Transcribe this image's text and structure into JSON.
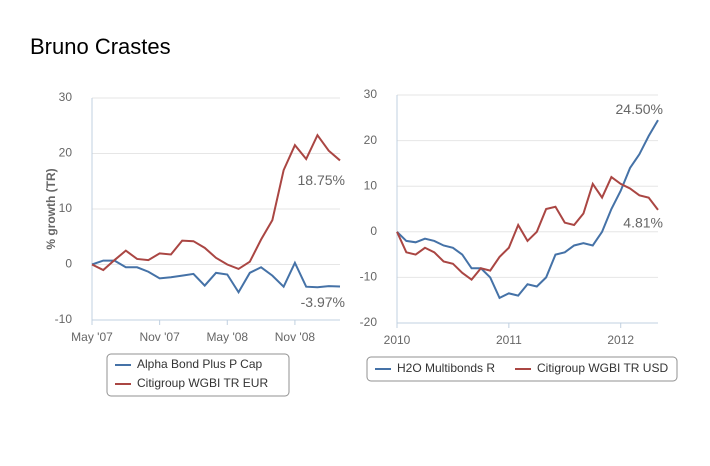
{
  "title": "Bruno Crastes",
  "chart_data": [
    {
      "type": "line",
      "ylabel": "% growth (TR)",
      "categories": [
        "May '07",
        null,
        null,
        null,
        null,
        null,
        "Nov '07",
        null,
        null,
        null,
        null,
        null,
        "May '08",
        null,
        null,
        null,
        null,
        null,
        "Nov '08",
        null,
        null,
        null,
        null
      ],
      "ylim": [
        -10,
        30
      ],
      "yticks": [
        -10,
        0,
        10,
        20,
        30
      ],
      "grid": true,
      "legend": "bottom",
      "series": [
        {
          "name": "Alpha Bond Plus P Cap",
          "color": "#4572a7",
          "values": [
            0,
            0.7,
            0.7,
            -0.5,
            -0.5,
            -1.3,
            -2.5,
            -2.3,
            -2,
            -1.7,
            -3.8,
            -1.5,
            -1.8,
            -5,
            -1.5,
            -0.5,
            -2,
            -4,
            0.3,
            -4,
            -4.1,
            -3.9,
            -3.97
          ],
          "value_labels": [
            null,
            null,
            null,
            null,
            null,
            null,
            null,
            null,
            null,
            null,
            null,
            null,
            null,
            null,
            null,
            null,
            null,
            null,
            null,
            null,
            null,
            null,
            "-3.97%"
          ]
        },
        {
          "name": "Citigroup WGBI TR EUR",
          "color": "#aa4643",
          "values": [
            0,
            -1,
            0.8,
            2.5,
            1,
            0.8,
            2,
            1.8,
            4.3,
            4.2,
            3,
            1.2,
            0,
            -0.8,
            0.5,
            4.5,
            8,
            17,
            21.5,
            19,
            23.3,
            20.5,
            18.75
          ],
          "value_labels": [
            null,
            null,
            null,
            null,
            null,
            null,
            null,
            null,
            null,
            null,
            null,
            null,
            null,
            null,
            null,
            null,
            null,
            null,
            null,
            null,
            null,
            null,
            "18.75%"
          ]
        }
      ]
    },
    {
      "type": "line",
      "categories": [
        "2010",
        null,
        null,
        null,
        null,
        null,
        null,
        null,
        null,
        null,
        null,
        null,
        "2011",
        null,
        null,
        null,
        null,
        null,
        null,
        null,
        null,
        null,
        null,
        null,
        "2012",
        null,
        null,
        null,
        null
      ],
      "ylim": [
        -20,
        30
      ],
      "yticks": [
        -20,
        -10,
        0,
        10,
        20,
        30
      ],
      "grid": true,
      "legend": "bottom",
      "series": [
        {
          "name": "H2O Multibonds R",
          "color": "#4572a7",
          "values": [
            0,
            -2,
            -2.3,
            -1.5,
            -2,
            -3,
            -3.5,
            -5,
            -8,
            -8,
            -10,
            -14.5,
            -13.5,
            -14,
            -11.5,
            -12,
            -10,
            -5,
            -4.5,
            -3,
            -2.5,
            -3,
            0,
            5,
            9,
            14,
            17,
            21,
            24.5
          ],
          "value_labels": [
            null,
            null,
            null,
            null,
            null,
            null,
            null,
            null,
            null,
            null,
            null,
            null,
            null,
            null,
            null,
            null,
            null,
            null,
            null,
            null,
            null,
            null,
            null,
            null,
            null,
            null,
            null,
            null,
            "24.50%"
          ]
        },
        {
          "name": "Citigroup WGBI TR USD",
          "color": "#aa4643",
          "values": [
            0,
            -4.5,
            -5,
            -3.5,
            -4.5,
            -6.5,
            -7,
            -9,
            -10.5,
            -8,
            -8.5,
            -5.5,
            -3.5,
            1.5,
            -2,
            0,
            5,
            5.5,
            2,
            1.5,
            4,
            10.5,
            7.5,
            12,
            10.5,
            9.5,
            8,
            7.5,
            4.81
          ],
          "value_labels": [
            null,
            null,
            null,
            null,
            null,
            null,
            null,
            null,
            null,
            null,
            null,
            null,
            null,
            null,
            null,
            null,
            null,
            null,
            null,
            null,
            null,
            null,
            null,
            null,
            null,
            null,
            null,
            null,
            "4.81%"
          ]
        }
      ]
    }
  ]
}
